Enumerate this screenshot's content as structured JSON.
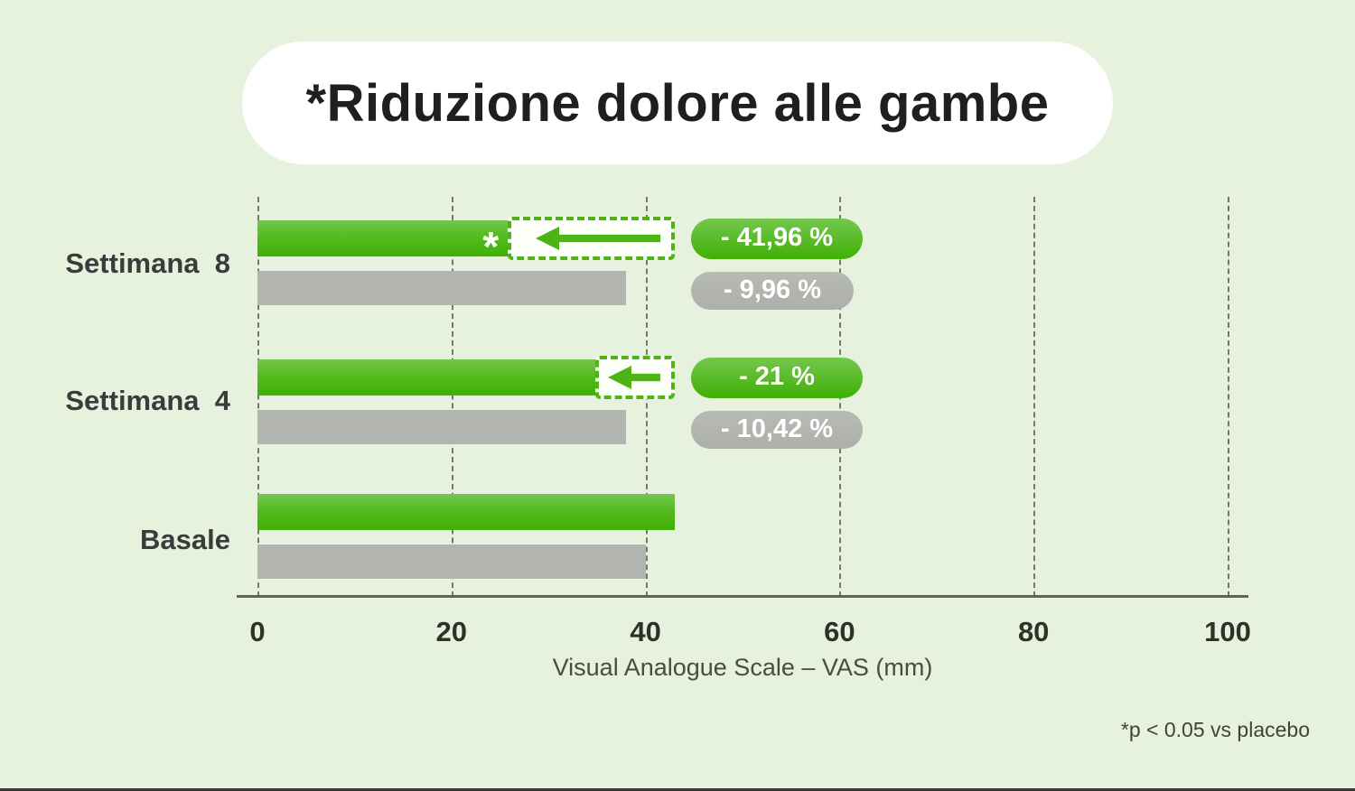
{
  "title": "*Riduzione dolore alle gambe",
  "footnote": "*p < 0.05 vs placebo",
  "colors": {
    "background": "#e7f2de",
    "green_top": "#74c74e",
    "green_mid": "#55bb1f",
    "green_bottom": "#3fb004",
    "green_accent": "#4cb515",
    "gray_bar_top": "#b8bab6",
    "gray_bar_bottom": "#adafab",
    "gray_flat": "#b2b4b0",
    "pill_text": "#ffffff",
    "dashed_box_fill": "#fdfffa"
  },
  "chart_data": {
    "type": "bar",
    "orientation": "horizontal",
    "title": "*Riduzione dolore alle gambe",
    "xlabel": "Visual Analogue Scale – VAS (mm)",
    "xlim": [
      0,
      100
    ],
    "xticks": [
      "0",
      "20",
      "40",
      "60",
      "80",
      "100"
    ],
    "grid": "dashed-vertical",
    "legend": "none",
    "groups": [
      {
        "category": "Settimana  8",
        "green_value": 26,
        "green_dashed_to": 43,
        "green_star": "*",
        "green_badge": "- 41,96 %",
        "gray_value": 38,
        "gray_badge": "- 9,96 %"
      },
      {
        "category": "Settimana  4",
        "green_value": 35,
        "green_dashed_to": 43,
        "green_star": null,
        "green_badge": "- 21 %",
        "gray_value": 38,
        "gray_badge": "- 10,42 %"
      },
      {
        "category": "Basale",
        "green_value": 43,
        "green_dashed_to": null,
        "green_star": null,
        "green_badge": null,
        "gray_value": 40,
        "gray_badge": null
      }
    ]
  }
}
